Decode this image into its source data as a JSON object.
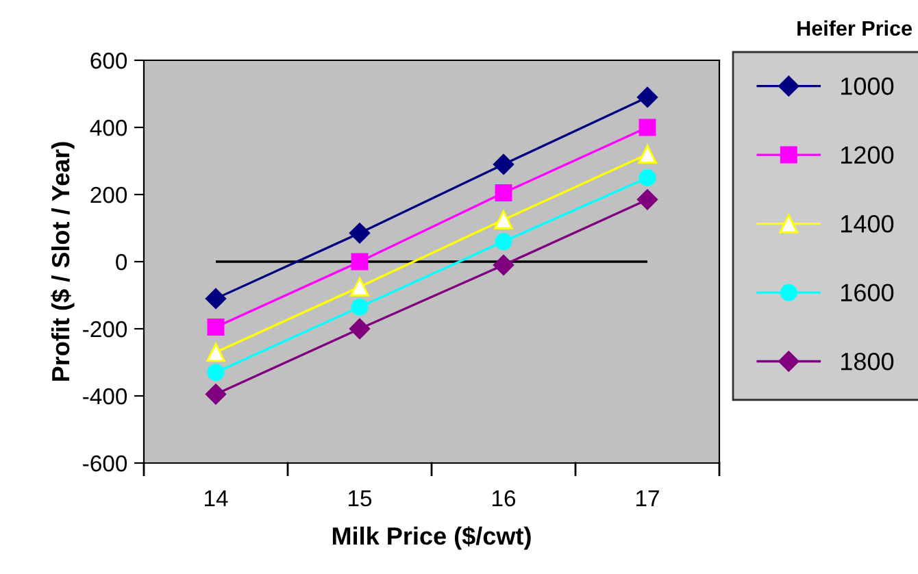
{
  "chart_data": {
    "type": "line",
    "xlabel": "Milk Price ($/cwt)",
    "ylabel": "Profit ($ / Slot / Year)",
    "legend_title": "Heifer Price",
    "categories": [
      "14",
      "15",
      "16",
      "17"
    ],
    "ylim": [
      -600,
      600
    ],
    "yticks": [
      -600,
      -400,
      -200,
      0,
      200,
      400,
      600
    ],
    "grid": false,
    "legend": "right",
    "ref_lines": [
      {
        "axis": "y",
        "value": 0,
        "color": "#000000"
      }
    ],
    "series": [
      {
        "name": "1000",
        "color": "#000080",
        "marker": "diamond",
        "values": [
          -110,
          85,
          290,
          490
        ]
      },
      {
        "name": "1200",
        "color": "#ff00ff",
        "marker": "square",
        "values": [
          -195,
          0,
          205,
          400
        ]
      },
      {
        "name": "1400",
        "color": "#ffff00",
        "marker": "triangle",
        "values": [
          -270,
          -75,
          125,
          320
        ]
      },
      {
        "name": "1600",
        "color": "#00ffff",
        "marker": "circle",
        "values": [
          -330,
          -135,
          60,
          250
        ]
      },
      {
        "name": "1800",
        "color": "#800080",
        "marker": "diamond",
        "values": [
          -395,
          -200,
          -10,
          185
        ]
      }
    ]
  }
}
